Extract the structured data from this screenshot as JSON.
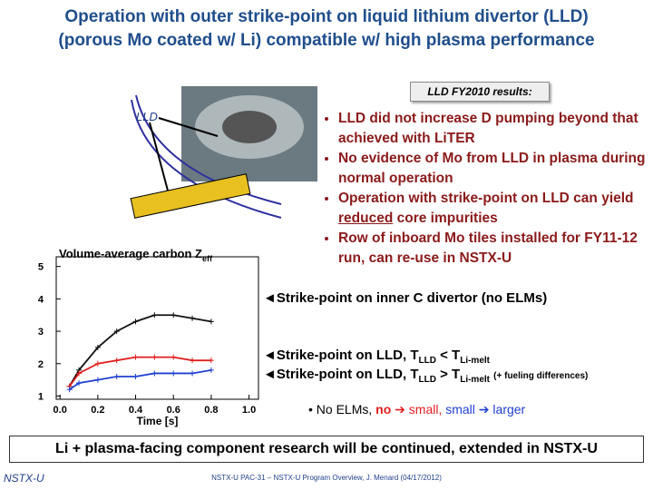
{
  "header": {
    "title_lines": [
      "Operation with outer strike-point on liquid lithium divertor (LLD)",
      "(porous Mo coated w/ Li) compatible w/ high plasma performance"
    ]
  },
  "results_box": "LLD FY2010 results:",
  "figure_label": "LLD",
  "bullets": [
    [
      "LLD did not increase D pumping beyond that achieved with LiTER"
    ],
    [
      "No evidence of Mo from LLD in plasma during normal operation"
    ],
    [
      "Operation with strike-point on LLD can yield ",
      "reduced",
      " core impurities"
    ],
    [
      "Row of inboard Mo tiles installed for FY11-12 run, can re-use in NSTX-U"
    ]
  ],
  "plot": {
    "type": "scatter",
    "title": "Volume-average carbon Z",
    "title_sub": "eff",
    "x_label": "Time [s]",
    "xlim": [
      -0.02,
      1.05
    ],
    "xticks": [
      {
        "value": 0,
        "label": "0.0"
      },
      0.2,
      0.4,
      0.6,
      0.8,
      {
        "value": 1,
        "label": "1.0"
      }
    ],
    "ylim": [
      0.9,
      5.3
    ],
    "yticks": [
      1,
      2,
      3,
      4,
      5
    ],
    "x": [
      0.05,
      0.1,
      0.2,
      0.3,
      0.4,
      0.5,
      0.6,
      0.7,
      0.8
    ],
    "series": [
      {
        "color": "#111111",
        "values": [
          1.3,
          1.8,
          2.5,
          3.0,
          3.3,
          3.5,
          3.5,
          3.4,
          3.3
        ]
      },
      {
        "color": "#e02020",
        "values": [
          1.3,
          1.7,
          2.0,
          2.1,
          2.2,
          2.2,
          2.2,
          2.1,
          2.1
        ]
      },
      {
        "color": "#2040d0",
        "values": [
          1.2,
          1.4,
          1.5,
          1.6,
          1.6,
          1.7,
          1.7,
          1.7,
          1.8
        ]
      }
    ]
  },
  "annotations": {
    "inner": "◄Strike-point on inner C divertor (no ELMs)",
    "lld_cold": [
      "◄Strike-point on LLD, T",
      "LLD",
      " < T",
      "Li-melt"
    ],
    "lld_hot": [
      "◄Strike-point on LLD, T",
      "LLD",
      " > T",
      "Li-melt",
      "(+ fueling differences)"
    ],
    "elms": [
      "• No ELMs, ",
      "no",
      " ➔ ",
      "small,",
      " small",
      " ➔ ",
      "larger"
    ]
  },
  "conclusion": "Li + plasma-facing component research will be continued, extended in NSTX-U",
  "footer": {
    "logo": "NSTX-U",
    "text": "NSTX-U PAC-31 – NSTX-U Program Overview, J. Menard (04/17/2012)"
  }
}
